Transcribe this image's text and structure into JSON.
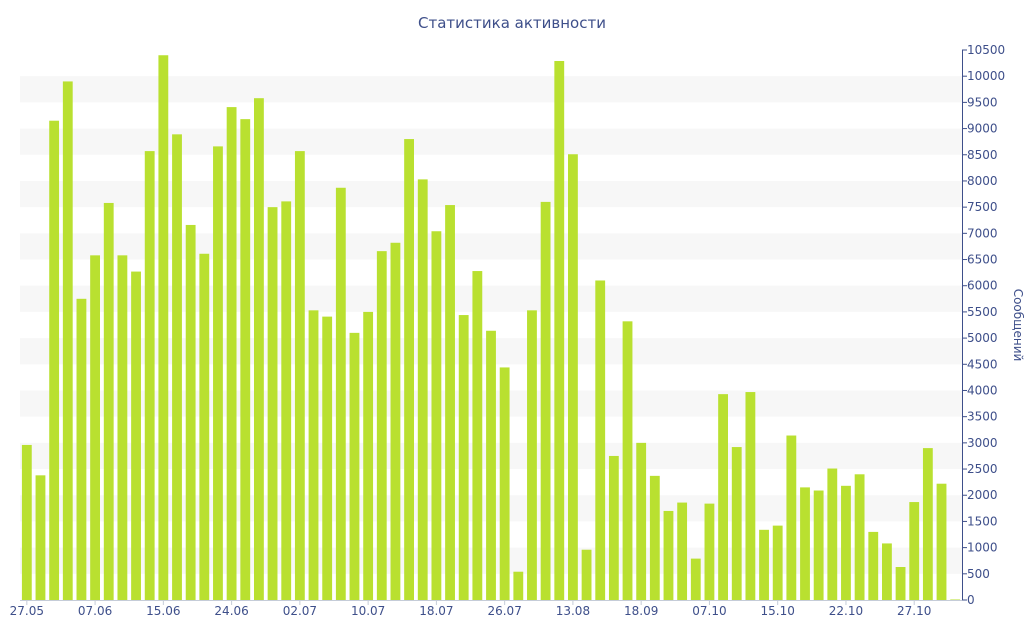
{
  "chart_data": {
    "type": "bar",
    "title": "Статистика активности",
    "xlabel": "",
    "ylabel": "Сообщений",
    "ylim": [
      0,
      10500
    ],
    "y_axis_position": "right",
    "y_ticks": [
      0,
      500,
      1000,
      1500,
      2000,
      2500,
      3000,
      3500,
      4000,
      4500,
      5000,
      5500,
      6000,
      6500,
      7000,
      7500,
      8000,
      8500,
      9000,
      9500,
      10000,
      10500
    ],
    "x_tick_labels": [
      {
        "index": 0,
        "label": "27.05"
      },
      {
        "index": 5,
        "label": "07.06"
      },
      {
        "index": 10,
        "label": "15.06"
      },
      {
        "index": 15,
        "label": "24.06"
      },
      {
        "index": 20,
        "label": "02.07"
      },
      {
        "index": 25,
        "label": "10.07"
      },
      {
        "index": 30,
        "label": "18.07"
      },
      {
        "index": 35,
        "label": "26.07"
      },
      {
        "index": 40,
        "label": "13.08"
      },
      {
        "index": 45,
        "label": "18.09"
      },
      {
        "index": 50,
        "label": "07.10"
      },
      {
        "index": 55,
        "label": "15.10"
      },
      {
        "index": 60,
        "label": "22.10"
      },
      {
        "index": 65,
        "label": "27.10"
      }
    ],
    "values": [
      2960,
      2380,
      9150,
      9900,
      5750,
      6580,
      7580,
      6580,
      6270,
      8570,
      10400,
      8890,
      7160,
      6610,
      8660,
      9410,
      9180,
      9580,
      7500,
      7610,
      8570,
      5530,
      5410,
      7870,
      5100,
      5500,
      6660,
      6820,
      8800,
      8030,
      7040,
      7540,
      5440,
      6280,
      5140,
      4440,
      540,
      5530,
      7600,
      10290,
      8510,
      960,
      6100,
      2750,
      5320,
      3000,
      2370,
      1700,
      1860,
      790,
      1840,
      3930,
      2920,
      3970,
      1340,
      1420,
      3140,
      2150,
      2090,
      2510,
      2180,
      2400,
      1300,
      1080,
      630,
      1870,
      2900,
      2220,
      10
    ],
    "bar_color": "#b9e030",
    "band_color": "#f7f7f7",
    "axis_text_color": "#3e4f8a",
    "grid": "alternating-bands"
  }
}
